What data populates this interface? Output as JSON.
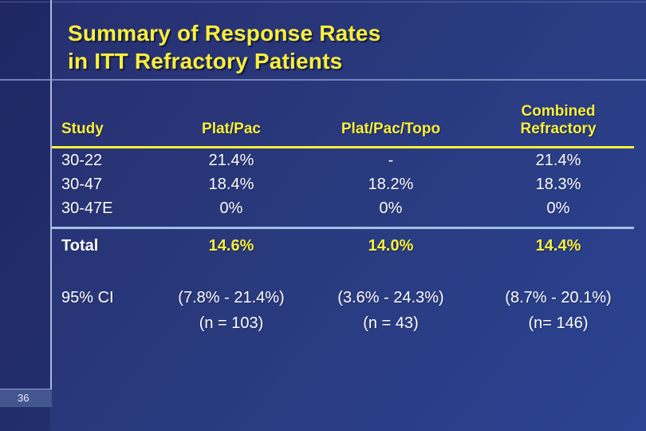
{
  "slide": {
    "title_line1": "Summary of Response Rates",
    "title_line2": "in ITT Refractory Patients",
    "page_number": "36"
  },
  "table": {
    "headers": {
      "study": "Study",
      "plat_pac": "Plat/Pac",
      "plat_pac_topo": "Plat/Pac/Topo",
      "combined_line1": "Combined",
      "combined_line2": "Refractory"
    },
    "rows": [
      {
        "study": "30-22",
        "plat_pac": "21.4%",
        "plat_pac_topo": "-",
        "combined": "21.4%"
      },
      {
        "study": "30-47",
        "plat_pac": "18.4%",
        "plat_pac_topo": "18.2%",
        "combined": "18.3%"
      },
      {
        "study": "30-47E",
        "plat_pac": "0%",
        "plat_pac_topo": "0%",
        "combined": "0%"
      }
    ],
    "total": {
      "label": "Total",
      "plat_pac": "14.6%",
      "plat_pac_topo": "14.0%",
      "combined": "14.4%"
    },
    "ci": {
      "label": "95% CI",
      "plat_pac": "(7.8% - 21.4%)",
      "plat_pac_n": "(n = 103)",
      "plat_pac_topo": "(3.6% - 24.3%)",
      "plat_pac_topo_n": "(n = 43)",
      "combined": "(8.7% - 20.1%)",
      "combined_n": "(n= 146)"
    }
  },
  "colors": {
    "accent_yellow": "#f8ef3b",
    "text_white": "#ffffff",
    "background_top": "#262e6f",
    "background_bottom": "#2b4392",
    "divider_blue": "#9fc0e2",
    "vertical_rule": "#a9b8dc",
    "page_box_fill": "#44568e"
  }
}
